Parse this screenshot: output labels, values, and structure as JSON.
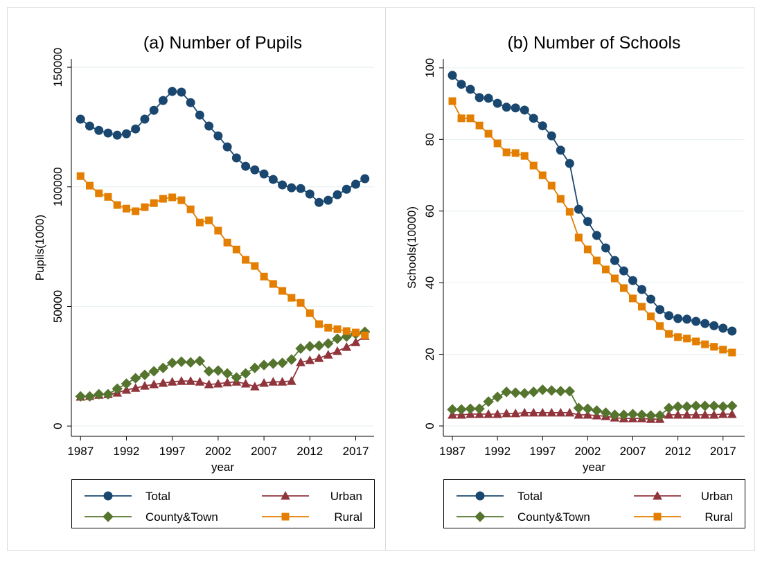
{
  "chart_data": [
    {
      "type": "line",
      "title": "(a) Number of Pupils",
      "xlabel": "year",
      "ylabel": "Pupils(1000)",
      "x": [
        1987,
        1988,
        1989,
        1990,
        1991,
        1992,
        1993,
        1994,
        1995,
        1996,
        1997,
        1998,
        1999,
        2000,
        2001,
        2002,
        2003,
        2004,
        2005,
        2006,
        2007,
        2008,
        2009,
        2010,
        2011,
        2012,
        2013,
        2014,
        2015,
        2016,
        2017,
        2018
      ],
      "xlim": [
        1986,
        2019
      ],
      "xticks": [
        1987,
        1992,
        1997,
        2002,
        2007,
        2012,
        2017
      ],
      "ylim": [
        -4300,
        153500
      ],
      "yticks": [
        0,
        50000,
        100000,
        150000
      ],
      "grid": true,
      "legend": "bottom",
      "series": [
        {
          "name": "Total",
          "color": "#1a476f",
          "marker": "circle",
          "values": [
            128300,
            125400,
            123600,
            122500,
            121600,
            122200,
            124200,
            128300,
            132000,
            136100,
            139900,
            139600,
            135200,
            130000,
            125400,
            121300,
            116700,
            112100,
            108600,
            107100,
            105400,
            103100,
            100800,
            99600,
            99300,
            97000,
            93500,
            94400,
            96700,
            99000,
            101100,
            103400
          ]
        },
        {
          "name": "Urban",
          "color": "#90353b",
          "marker": "triangle",
          "values": [
            12200,
            12500,
            13000,
            13300,
            13900,
            15100,
            15900,
            16800,
            17400,
            18000,
            18500,
            18800,
            18800,
            18500,
            17400,
            17700,
            18200,
            18500,
            17700,
            16500,
            18000,
            18500,
            18500,
            18800,
            26600,
            27500,
            28400,
            29800,
            31300,
            33000,
            35000,
            37600
          ]
        },
        {
          "name": "County&Town",
          "color": "#55752f",
          "marker": "diamond",
          "values": [
            12400,
            12400,
            13300,
            13300,
            15600,
            17700,
            20000,
            21400,
            22900,
            24300,
            26400,
            26900,
            26600,
            27200,
            22900,
            23200,
            22000,
            20300,
            22000,
            24300,
            25500,
            26100,
            26400,
            27800,
            32400,
            33300,
            33600,
            34500,
            36500,
            37400,
            38500,
            39400
          ]
        },
        {
          "name": "Rural",
          "color": "#e37e00",
          "marker": "square",
          "values": [
            104500,
            100500,
            97300,
            95800,
            92400,
            90900,
            89800,
            91500,
            93200,
            95000,
            95600,
            94400,
            90600,
            85100,
            86000,
            81700,
            76700,
            73800,
            69500,
            66900,
            62500,
            59400,
            56500,
            53600,
            51500,
            47200,
            42600,
            41100,
            40500,
            39700,
            39100,
            37900
          ]
        }
      ]
    },
    {
      "type": "line",
      "title": "(b) Number of Schools",
      "xlabel": "year",
      "ylabel": "Schools(10000)",
      "x": [
        1987,
        1988,
        1989,
        1990,
        1991,
        1992,
        1993,
        1994,
        1995,
        1996,
        1997,
        1998,
        1999,
        2000,
        2001,
        2002,
        2003,
        2004,
        2005,
        2006,
        2007,
        2008,
        2009,
        2010,
        2011,
        2012,
        2013,
        2014,
        2015,
        2016,
        2017,
        2018
      ],
      "xlim": [
        1986,
        2019.4
      ],
      "xticks": [
        1987,
        1992,
        1997,
        2002,
        2007,
        2012,
        2017
      ],
      "ylim": [
        -2.9,
        102.5
      ],
      "yticks": [
        0,
        20,
        40,
        60,
        80,
        100
      ],
      "grid": true,
      "legend": "bottom",
      "series": [
        {
          "name": "Total",
          "color": "#1a476f",
          "marker": "circle",
          "values": [
            97.9,
            95.4,
            94.0,
            91.7,
            91.5,
            90.1,
            89.0,
            88.8,
            88.2,
            85.9,
            83.8,
            81.0,
            77.0,
            73.3,
            60.5,
            57.1,
            53.2,
            49.7,
            46.2,
            43.3,
            40.6,
            38.1,
            35.4,
            32.5,
            30.8,
            30.0,
            29.8,
            29.2,
            28.6,
            28.0,
            27.3,
            26.5
          ]
        },
        {
          "name": "Urban",
          "color": "#90353b",
          "marker": "triangle",
          "values": [
            3.1,
            3.1,
            3.3,
            3.3,
            3.3,
            3.3,
            3.5,
            3.5,
            3.7,
            3.7,
            3.7,
            3.7,
            3.7,
            3.7,
            3.1,
            3.1,
            2.9,
            2.7,
            2.3,
            2.1,
            2.1,
            2.1,
            1.9,
            1.9,
            3.1,
            3.1,
            3.1,
            3.1,
            3.1,
            3.1,
            3.3,
            3.3
          ]
        },
        {
          "name": "County&Town",
          "color": "#55752f",
          "marker": "diamond",
          "values": [
            4.6,
            4.6,
            4.8,
            4.8,
            6.8,
            8.1,
            9.5,
            9.3,
            9.1,
            9.5,
            10.1,
            9.9,
            9.7,
            9.7,
            5.0,
            4.8,
            4.3,
            3.7,
            3.1,
            3.1,
            3.3,
            3.1,
            2.9,
            2.9,
            5.0,
            5.4,
            5.4,
            5.6,
            5.6,
            5.6,
            5.4,
            5.6
          ]
        },
        {
          "name": "Rural",
          "color": "#e37e00",
          "marker": "square",
          "values": [
            90.7,
            85.9,
            85.9,
            83.9,
            81.6,
            78.9,
            76.4,
            76.2,
            75.4,
            72.7,
            70.0,
            67.1,
            63.4,
            59.8,
            52.6,
            49.3,
            46.2,
            43.7,
            41.2,
            38.5,
            35.6,
            33.3,
            30.6,
            27.9,
            25.7,
            24.8,
            24.4,
            23.6,
            22.8,
            22.1,
            21.3,
            20.5
          ]
        }
      ]
    }
  ]
}
